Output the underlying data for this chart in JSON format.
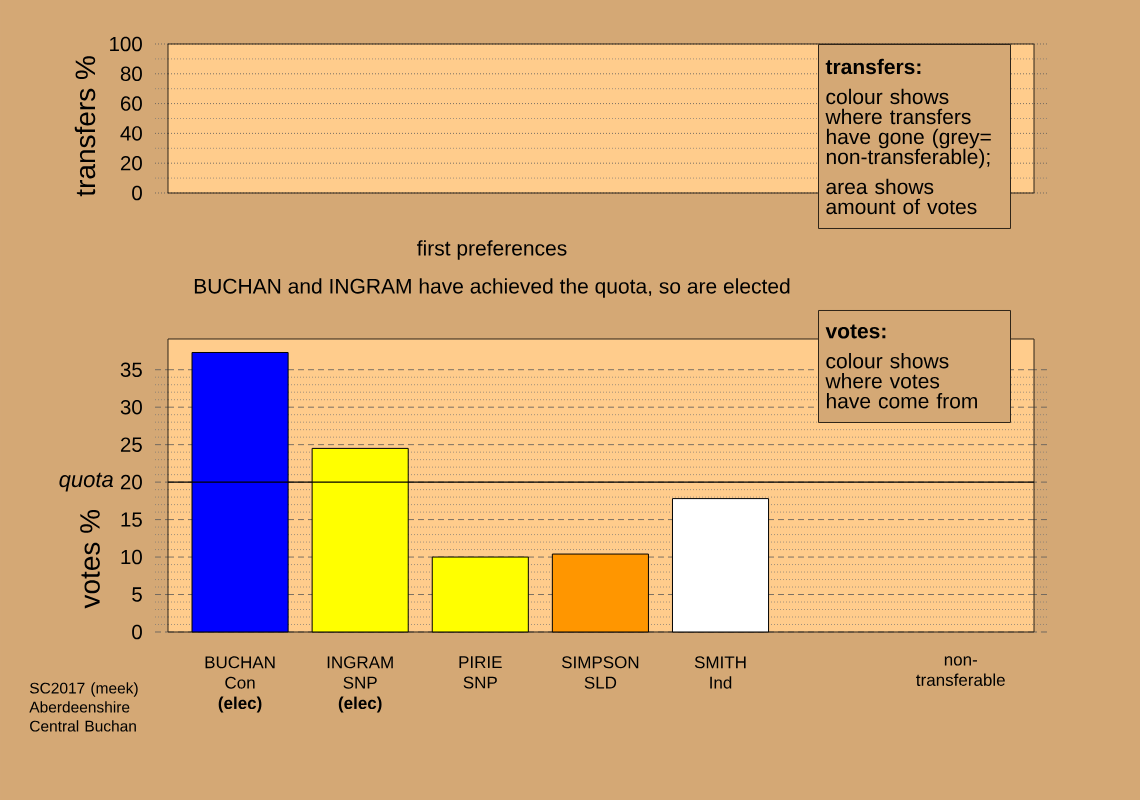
{
  "chart_data": [
    {
      "type": "bar",
      "ylabel": "transfers %",
      "categories": [
        null,
        null,
        null,
        null,
        null,
        null,
        null
      ],
      "values": [
        null,
        null,
        null,
        null,
        null,
        null,
        null
      ],
      "ylim": [
        0,
        100
      ],
      "yticks": [
        0,
        20,
        40,
        60,
        80,
        100
      ],
      "grid": "y",
      "tick_labels": "y",
      "annotations": [
        "transfers:",
        "colour shows where transfers have gone (grey= non-transferable);",
        "area shows amount of votes"
      ]
    },
    {
      "type": "bar",
      "title": "first preferences",
      "subtitle": "BUCHAN and INGRAM have achieved the quota, so are elected",
      "ylabel": "votes %",
      "categories": [
        "BUCHAN Con **(elec)**",
        "INGRAM SNP **(elec)**",
        "PIRIE SNP",
        "SIMPSON SLD",
        "SMITH Ind",
        null,
        "non-transferable"
      ],
      "values": [
        37.3,
        24.5,
        10.0,
        10.4,
        17.8,
        null,
        null
      ],
      "colors": [
        "#0000ff",
        "#ffff00",
        "#ffff00",
        "#ff9600",
        "#ffffff",
        null,
        null
      ],
      "ylim": [
        0,
        39.1
      ],
      "yticks": [
        0,
        5,
        10,
        15,
        20,
        25,
        30,
        35
      ],
      "grid": "y",
      "ref_lines": [
        {
          "axis": "y",
          "value": 20,
          "label": "quota",
          "color": "#000000"
        }
      ],
      "annotations": [
        "votes:",
        "colour shows where votes have come from",
        "SC2017 (meek) Aberdeenshire Central Buchan"
      ]
    }
  ]
}
